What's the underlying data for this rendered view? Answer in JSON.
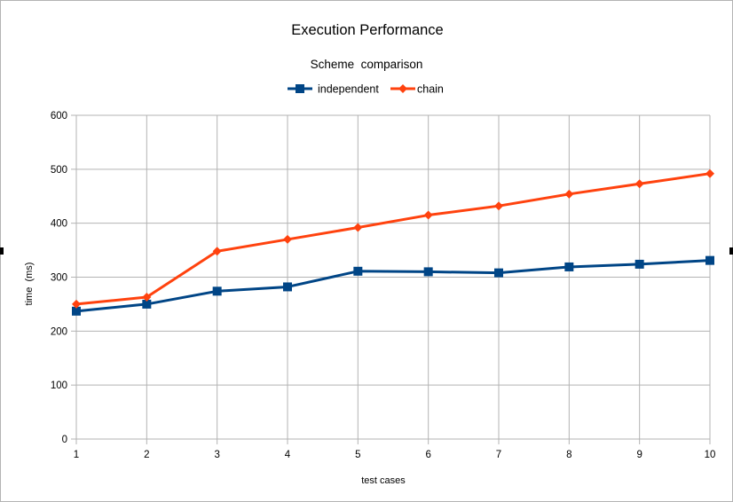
{
  "chart_data": {
    "type": "line",
    "title": "Execution Performance",
    "subtitle": "Scheme  comparison",
    "xlabel": "test cases",
    "ylabel": "time  (ms)",
    "x": [
      1,
      2,
      3,
      4,
      5,
      6,
      7,
      8,
      9,
      10
    ],
    "ylim": [
      0,
      600
    ],
    "yticks": [
      0,
      100,
      200,
      300,
      400,
      500,
      600
    ],
    "grid": true,
    "legend_position": "top",
    "series": [
      {
        "name": "independent",
        "color": "#004586",
        "marker": "square",
        "values": [
          237,
          250,
          274,
          282,
          311,
          310,
          308,
          319,
          324,
          331
        ]
      },
      {
        "name": "chain",
        "color": "#ff420e",
        "marker": "diamond",
        "values": [
          250,
          263,
          348,
          370,
          392,
          415,
          432,
          454,
          473,
          492
        ]
      }
    ]
  }
}
